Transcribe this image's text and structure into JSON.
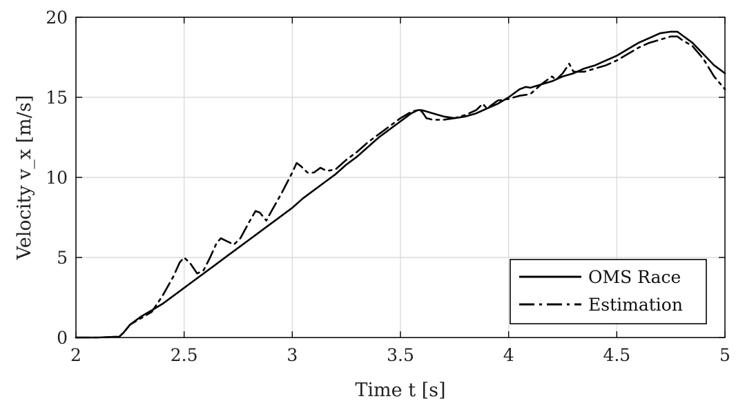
{
  "chart_data": {
    "type": "line",
    "xlabel": "Time t [s]",
    "ylabel": "Velocity v_x [m/s]",
    "xlim": [
      2,
      5
    ],
    "ylim": [
      0,
      20
    ],
    "xticks": [
      2,
      2.5,
      3,
      3.5,
      4,
      4.5,
      5
    ],
    "xtick_labels": [
      "2",
      "2.5",
      "3",
      "3.5",
      "4",
      "4.5",
      "5"
    ],
    "yticks": [
      0,
      5,
      10,
      15,
      20
    ],
    "ytick_labels": [
      "0",
      "5",
      "10",
      "15",
      "20"
    ],
    "grid": true,
    "legend_position": "bottom-right",
    "series": [
      {
        "name": "OMS Race",
        "style": "solid",
        "color": "#000000",
        "x": [
          2.0,
          2.1,
          2.2,
          2.22,
          2.25,
          2.3,
          2.35,
          2.4,
          2.45,
          2.5,
          2.55,
          2.6,
          2.65,
          2.7,
          2.75,
          2.8,
          2.85,
          2.9,
          2.95,
          3.0,
          3.05,
          3.1,
          3.15,
          3.2,
          3.25,
          3.3,
          3.35,
          3.4,
          3.45,
          3.5,
          3.55,
          3.58,
          3.6,
          3.65,
          3.7,
          3.75,
          3.8,
          3.85,
          3.9,
          3.95,
          4.0,
          4.05,
          4.08,
          4.1,
          4.15,
          4.2,
          4.25,
          4.3,
          4.35,
          4.4,
          4.45,
          4.5,
          4.55,
          4.6,
          4.65,
          4.7,
          4.75,
          4.78,
          4.8,
          4.85,
          4.9,
          4.95,
          5.0
        ],
        "y": [
          0.0,
          0.0,
          0.05,
          0.3,
          0.8,
          1.3,
          1.7,
          2.1,
          2.6,
          3.1,
          3.6,
          4.1,
          4.6,
          5.1,
          5.6,
          6.1,
          6.6,
          7.1,
          7.6,
          8.1,
          8.7,
          9.2,
          9.7,
          10.2,
          10.8,
          11.3,
          11.9,
          12.5,
          13.0,
          13.5,
          14.0,
          14.2,
          14.2,
          14.0,
          13.8,
          13.7,
          13.8,
          14.0,
          14.3,
          14.6,
          15.0,
          15.5,
          15.65,
          15.6,
          15.8,
          16.0,
          16.3,
          16.5,
          16.8,
          17.0,
          17.3,
          17.6,
          18.0,
          18.4,
          18.7,
          19.0,
          19.1,
          19.1,
          18.9,
          18.4,
          17.7,
          17.0,
          16.5
        ]
      },
      {
        "name": "Estimation",
        "style": "dashdot",
        "color": "#000000",
        "x": [
          2.0,
          2.1,
          2.2,
          2.22,
          2.25,
          2.3,
          2.35,
          2.4,
          2.45,
          2.48,
          2.5,
          2.53,
          2.56,
          2.59,
          2.62,
          2.65,
          2.67,
          2.7,
          2.73,
          2.76,
          2.8,
          2.83,
          2.85,
          2.88,
          2.9,
          2.95,
          3.0,
          3.02,
          3.04,
          3.07,
          3.1,
          3.13,
          3.16,
          3.2,
          3.25,
          3.3,
          3.35,
          3.4,
          3.45,
          3.5,
          3.55,
          3.58,
          3.6,
          3.62,
          3.65,
          3.7,
          3.75,
          3.8,
          3.85,
          3.88,
          3.9,
          3.95,
          4.0,
          4.05,
          4.1,
          4.15,
          4.2,
          4.22,
          4.25,
          4.28,
          4.3,
          4.35,
          4.4,
          4.45,
          4.5,
          4.55,
          4.6,
          4.65,
          4.7,
          4.75,
          4.78,
          4.8,
          4.85,
          4.9,
          4.95,
          5.0
        ],
        "y": [
          0.0,
          0.0,
          0.05,
          0.3,
          0.8,
          1.2,
          1.6,
          2.6,
          3.8,
          4.7,
          5.0,
          4.6,
          4.0,
          4.2,
          5.0,
          5.9,
          6.2,
          6.0,
          5.8,
          6.2,
          7.2,
          7.9,
          7.8,
          7.3,
          7.8,
          9.0,
          10.3,
          10.9,
          10.7,
          10.3,
          10.3,
          10.6,
          10.4,
          10.5,
          11.1,
          11.6,
          12.2,
          12.7,
          13.2,
          13.7,
          14.1,
          14.2,
          14.1,
          13.7,
          13.6,
          13.6,
          13.7,
          13.9,
          14.2,
          14.6,
          14.3,
          14.8,
          14.9,
          15.1,
          15.2,
          15.8,
          16.3,
          16.1,
          16.5,
          17.1,
          16.6,
          16.6,
          16.8,
          17.0,
          17.3,
          17.7,
          18.1,
          18.4,
          18.6,
          18.8,
          18.8,
          18.6,
          18.2,
          17.4,
          16.3,
          15.5
        ]
      }
    ]
  }
}
